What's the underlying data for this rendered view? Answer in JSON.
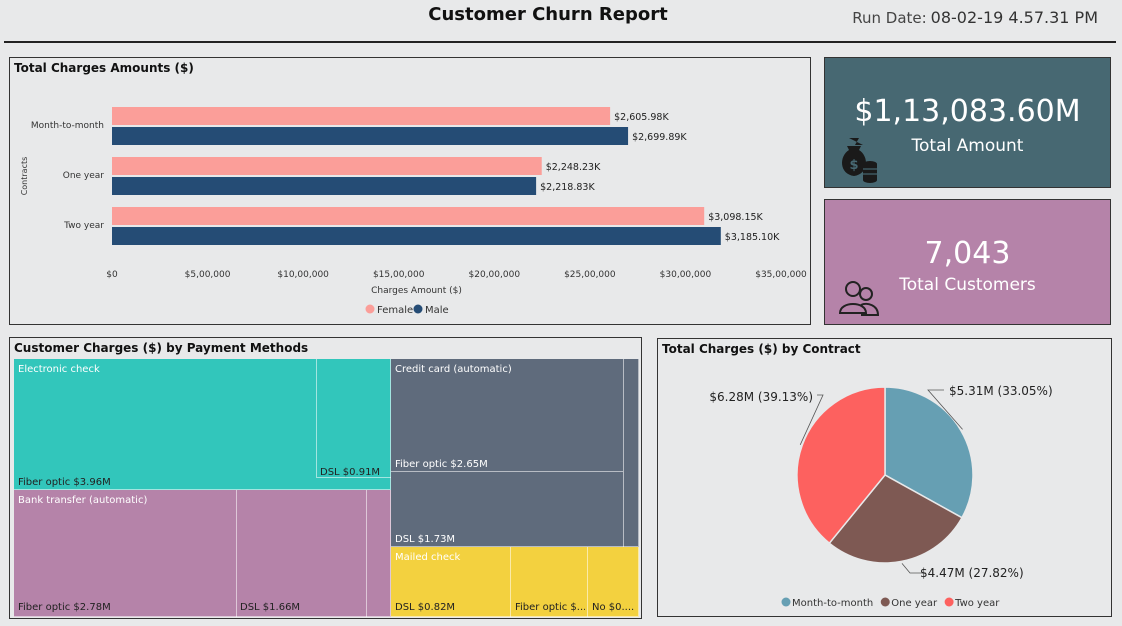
{
  "header": {
    "title": "Customer Churn Report",
    "run_date_label": "Run Date:",
    "run_date_value": "08-02-19 4.57.31 PM"
  },
  "bar_panel": {
    "title": "Total Charges Amounts ($)"
  },
  "cards": {
    "amount": {
      "value": "$1,13,083.60M",
      "label": "Total Amount",
      "icon": "money-bag-icon",
      "color": "#476872"
    },
    "customers": {
      "value": "7,043",
      "label": "Total Customers",
      "icon": "customers-icon",
      "color": "#b583a9"
    }
  },
  "treemap_panel": {
    "title": "Customer Charges ($) by Payment Methods",
    "groups": [
      {
        "name": "Electronic check",
        "color": "#32c6bb",
        "text_color": "#fff",
        "items": [
          {
            "label": "Fiber optic $3.96M"
          },
          {
            "label": "DSL $0.91M"
          }
        ]
      },
      {
        "name": "Credit card (automatic)",
        "color": "#5f6b7c",
        "text_color": "#fff",
        "items": [
          {
            "label": "Fiber optic $2.65M"
          },
          {
            "label": "DSL $1.73M"
          }
        ]
      },
      {
        "name": "Bank transfer (automatic)",
        "color": "#b583a9",
        "text_color": "#fff",
        "items": [
          {
            "label": "Fiber optic $2.78M"
          },
          {
            "label": "DSL $1.66M"
          }
        ]
      },
      {
        "name": "Mailed check",
        "color": "#f3d13f",
        "text_color": "#fff",
        "items": [
          {
            "label": "DSL $0.82M"
          },
          {
            "label": "Fiber optic $..."
          },
          {
            "label": "No $0...."
          }
        ]
      }
    ]
  },
  "pie_panel": {
    "title": "Total Charges ($) by Contract"
  },
  "chart_data": [
    {
      "type": "bar",
      "orientation": "horizontal",
      "title": "",
      "xlabel": "Charges Amount ($)",
      "ylabel": "Contracts",
      "categories": [
        "Month-to-month",
        "One year",
        "Two year"
      ],
      "series": [
        {
          "name": "Female",
          "color": "#fb9e99",
          "values": [
            2605980,
            2248230,
            3098150
          ],
          "data_labels": [
            "$2,605.98K",
            "$2,248.23K",
            "$3,098.15K"
          ]
        },
        {
          "name": "Male",
          "color": "#254c75",
          "values": [
            2699890,
            2218830,
            3185100
          ],
          "data_labels": [
            "$2,699.89K",
            "$2,218.83K",
            "$3,185.10K"
          ]
        }
      ],
      "xlim": [
        0,
        3500000
      ],
      "x_ticks": [
        0,
        500000,
        1000000,
        1500000,
        2000000,
        2500000,
        3000000,
        3500000
      ],
      "x_tick_labels": [
        "$0",
        "$5,00,000",
        "$10,00,000",
        "$15,00,000",
        "$20,00,000",
        "$25,00,000",
        "$30,00,000",
        "$35,00,000"
      ],
      "legend": "bottom",
      "grid": false
    },
    {
      "type": "pie",
      "title": "",
      "slices": [
        {
          "name": "Month-to-month",
          "value": 5.31,
          "percent": 33.05,
          "color": "#669fb3",
          "label": "$5.31M (33.05%)"
        },
        {
          "name": "One year",
          "value": 4.47,
          "percent": 27.82,
          "color": "#7e5953",
          "label": "$4.47M (27.82%)"
        },
        {
          "name": "Two year",
          "value": 6.28,
          "percent": 39.13,
          "color": "#fd615f",
          "label": "$6.28M (39.13%)"
        }
      ],
      "legend": "bottom"
    }
  ]
}
